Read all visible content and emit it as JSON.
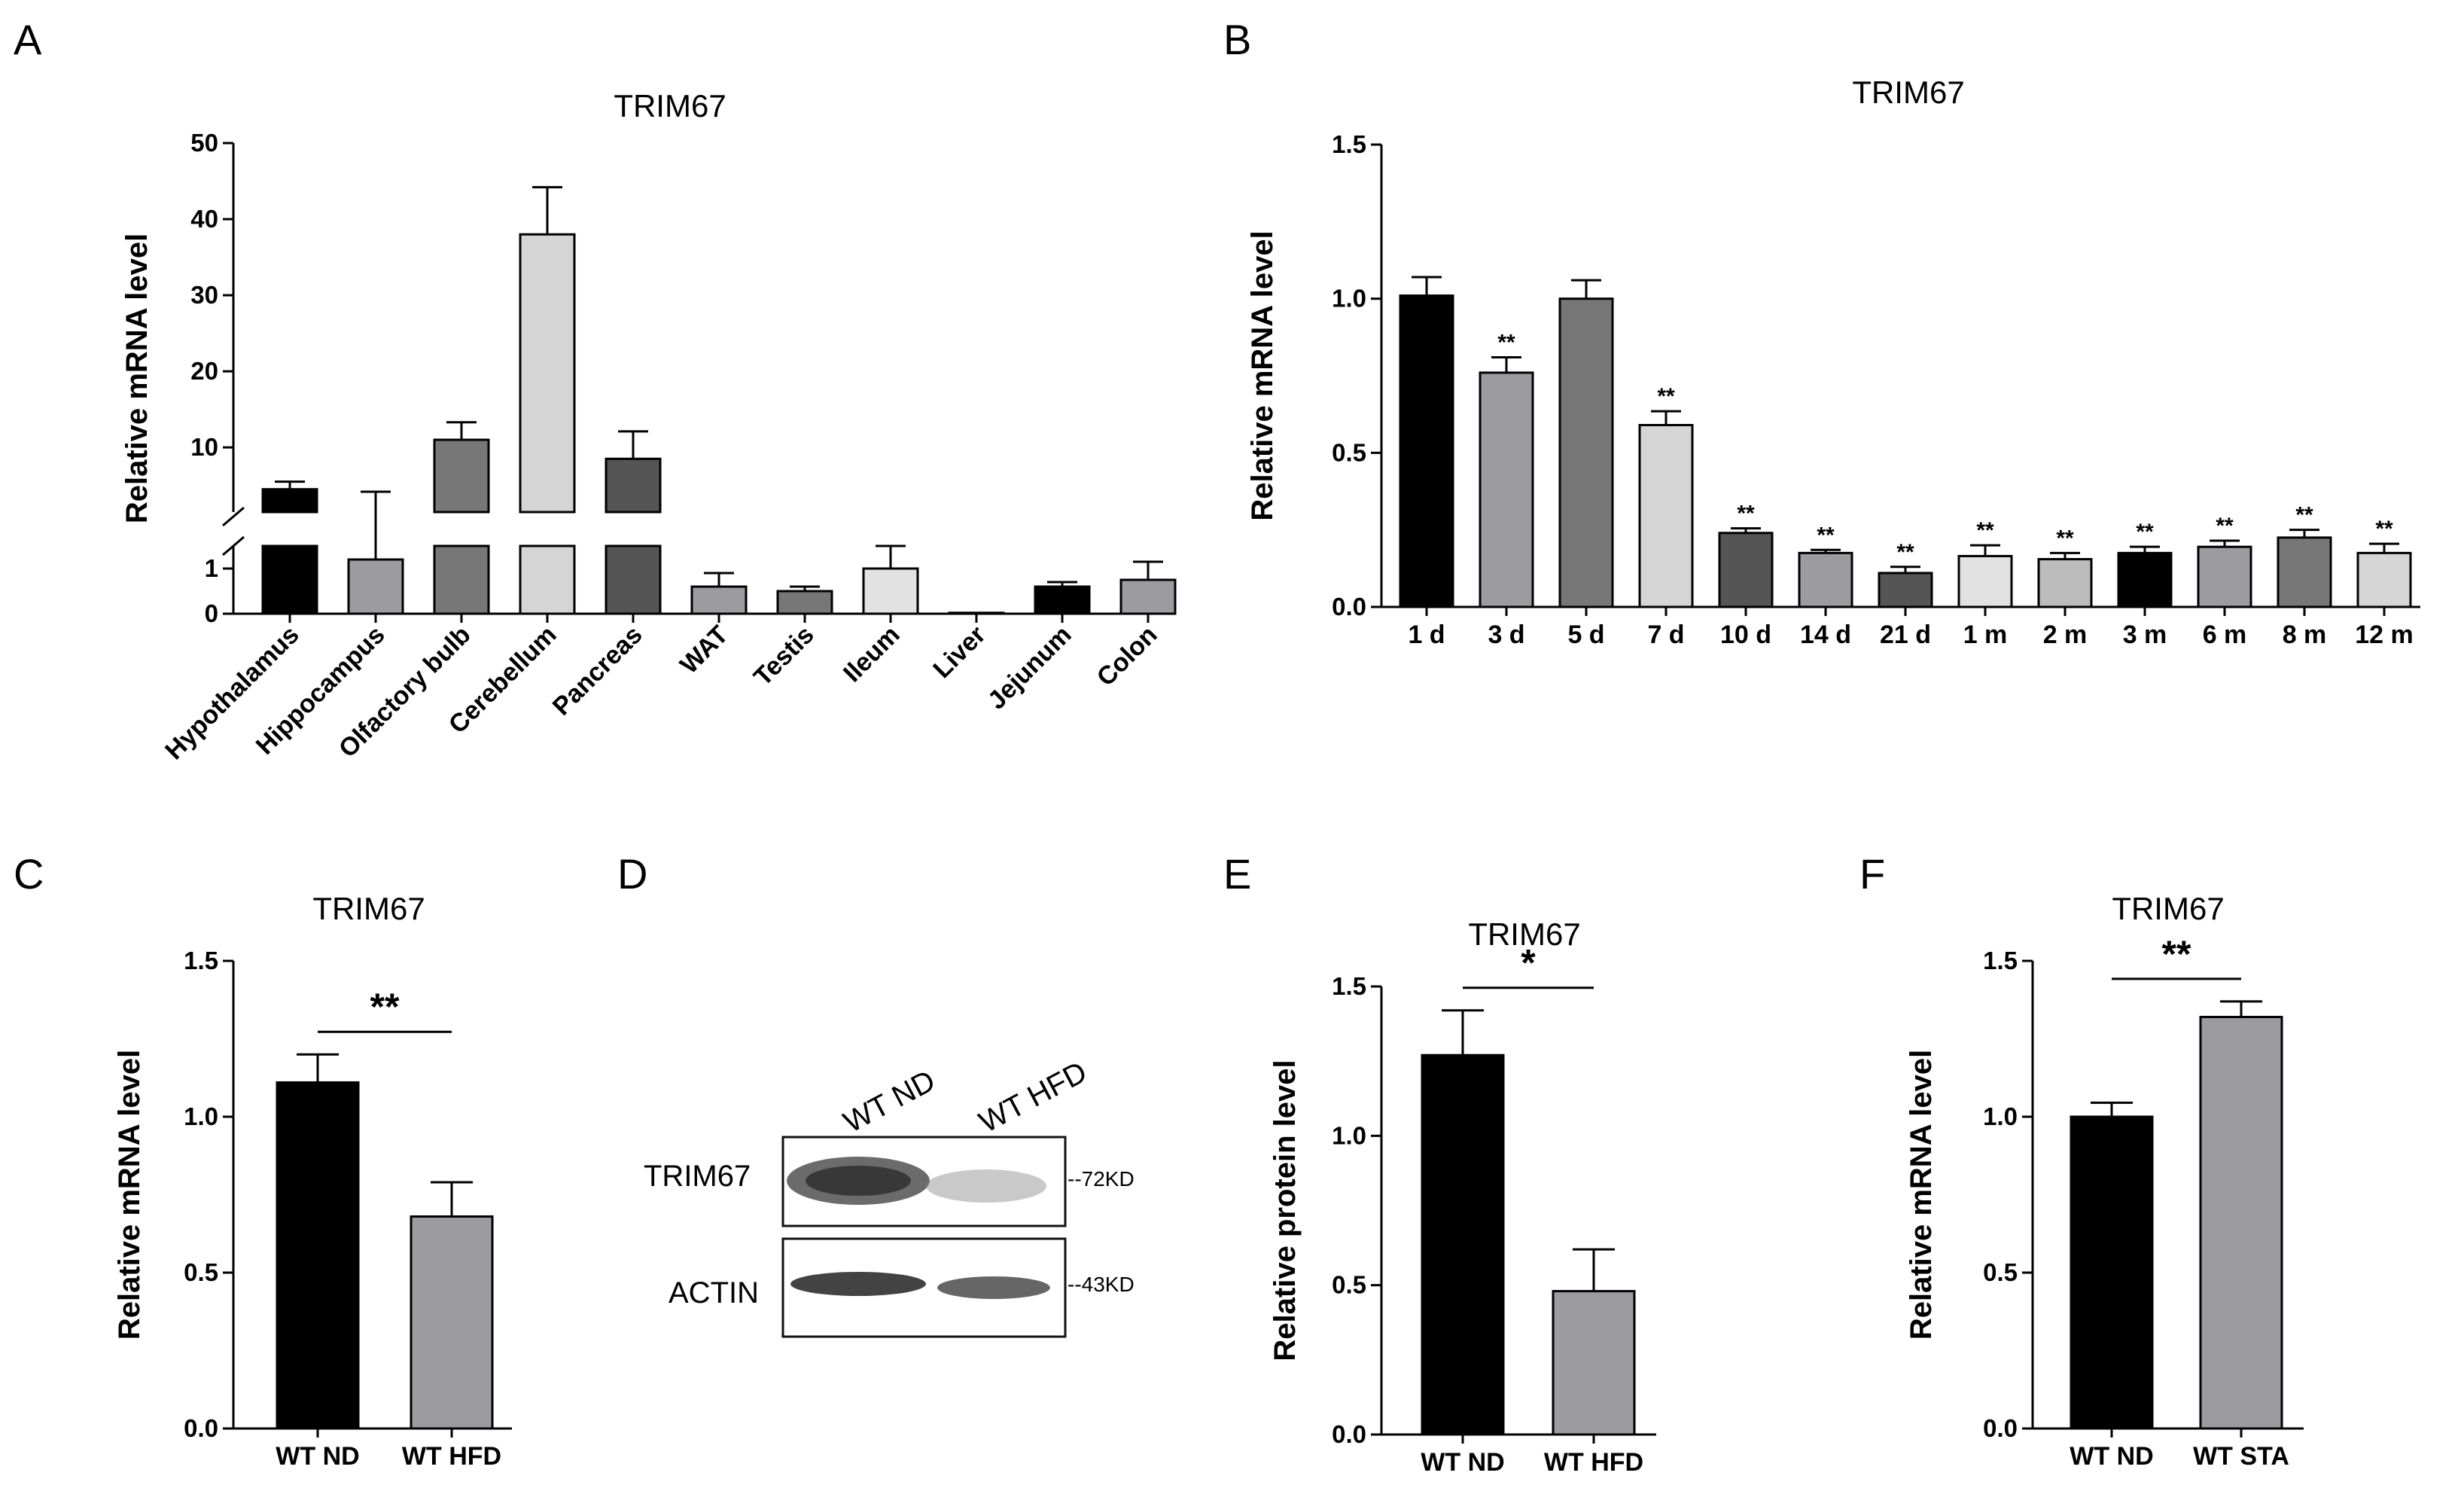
{
  "panels": {
    "A": "A",
    "B": "B",
    "C": "C",
    "D": "D",
    "E": "E",
    "F": "F"
  },
  "chart_data": [
    {
      "id": "A",
      "type": "bar",
      "title": "TRIM67",
      "ylabel": "Relative mRNA level",
      "xlabel": "",
      "broken_axis": true,
      "ylim_lower": [
        0,
        1.5
      ],
      "ylim_upper": [
        1.5,
        50
      ],
      "yticks_lower": [
        "0",
        "1"
      ],
      "yticks_upper": [
        "10",
        "20",
        "30",
        "40",
        "50"
      ],
      "categories": [
        "Hypothalamus",
        "Hippocampus",
        "Olfactory bulb",
        "Cerebellum",
        "Pancreas",
        "WAT",
        "Testis",
        "Ileum",
        "Liver",
        "Jejunum",
        "Colon"
      ],
      "values": [
        4.5,
        1.2,
        11.0,
        38.0,
        8.5,
        0.6,
        0.5,
        1.0,
        0.02,
        0.6,
        0.75
      ],
      "errors": [
        1.0,
        1.5,
        2.3,
        6.2,
        3.6,
        0.3,
        0.1,
        0.5,
        0.0,
        0.1,
        0.4
      ],
      "colors": [
        "#000000",
        "#9b9ba0",
        "#777777",
        "#d5d5d5",
        "#555555",
        "#9b9ba0",
        "#777777",
        "#e2e2e2",
        "#555555",
        "#000000",
        "#9b9ba0"
      ]
    },
    {
      "id": "B",
      "type": "bar",
      "title": "TRIM67",
      "ylabel": "Relative mRNA level",
      "xlabel": "",
      "ylim": [
        0,
        1.5
      ],
      "yticks": [
        "0.0",
        "0.5",
        "1.0",
        "1.5"
      ],
      "categories": [
        "1 d",
        "3 d",
        "5 d",
        "7 d",
        "10 d",
        "14 d",
        "21 d",
        "1 m",
        "2 m",
        "3 m",
        "6 m",
        "8 m",
        "12 m"
      ],
      "values": [
        1.01,
        0.76,
        1.0,
        0.59,
        0.24,
        0.175,
        0.11,
        0.165,
        0.155,
        0.175,
        0.195,
        0.225,
        0.175
      ],
      "errors": [
        0.06,
        0.05,
        0.06,
        0.045,
        0.015,
        0.01,
        0.02,
        0.035,
        0.02,
        0.02,
        0.02,
        0.025,
        0.03
      ],
      "significance": [
        "",
        "**",
        "",
        "**",
        "**",
        "**",
        "**",
        "**",
        "**",
        "**",
        "**",
        "**",
        "**"
      ],
      "colors": [
        "#000000",
        "#9b9ba0",
        "#777777",
        "#d5d5d5",
        "#555555",
        "#9b9ba0",
        "#555555",
        "#e2e2e2",
        "#bcbcbc",
        "#000000",
        "#9b9ba0",
        "#777777",
        "#d5d5d5"
      ]
    },
    {
      "id": "C",
      "type": "bar",
      "title": "TRIM67",
      "ylabel": "Relative mRNA level",
      "xlabel": "",
      "ylim": [
        0,
        1.5
      ],
      "yticks": [
        "0.0",
        "0.5",
        "1.0",
        "1.5"
      ],
      "categories": [
        "WT ND",
        "WT HFD"
      ],
      "values": [
        1.11,
        0.68
      ],
      "errors": [
        0.09,
        0.11
      ],
      "significance": "**",
      "colors": [
        "#000000",
        "#9b9ba0"
      ]
    },
    {
      "id": "E",
      "type": "bar",
      "title": "TRIM67",
      "ylabel": "Relative protein level",
      "xlabel": "",
      "ylim": [
        0,
        1.5
      ],
      "yticks": [
        "0.0",
        "0.5",
        "1.0",
        "1.5"
      ],
      "categories": [
        "WT ND",
        "WT HFD"
      ],
      "values": [
        1.27,
        0.48
      ],
      "errors": [
        0.15,
        0.14
      ],
      "significance": "*",
      "colors": [
        "#000000",
        "#9b9ba0"
      ]
    },
    {
      "id": "F",
      "type": "bar",
      "title": "TRIM67",
      "ylabel": "Relative mRNA level",
      "xlabel": "",
      "ylim": [
        0,
        1.5
      ],
      "yticks": [
        "0.0",
        "0.5",
        "1.0",
        "1.5"
      ],
      "categories": [
        "WT ND",
        "WT STA"
      ],
      "values": [
        1.0,
        1.32
      ],
      "errors": [
        0.045,
        0.05
      ],
      "significance": "**",
      "colors": [
        "#000000",
        "#9b9ba0"
      ]
    }
  ],
  "blot": {
    "lanes": [
      "WT ND",
      "WT HFD"
    ],
    "rows": [
      {
        "protein": "TRIM67",
        "marker": "--72KD"
      },
      {
        "protein": "ACTIN",
        "marker": "--43KD"
      }
    ]
  }
}
